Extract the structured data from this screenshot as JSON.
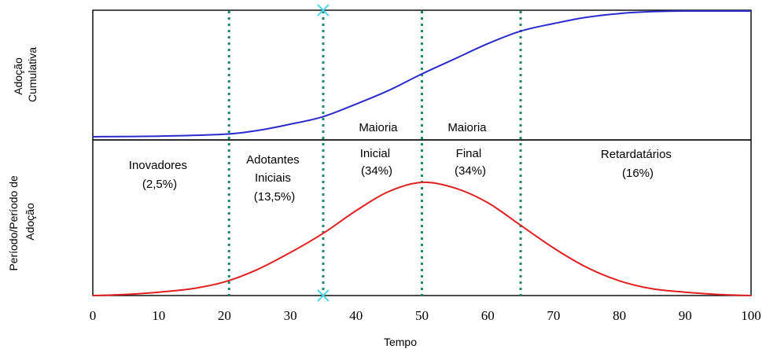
{
  "chart_data": {
    "type": "line",
    "x_label": "Tempo",
    "x_range": [
      0,
      100
    ],
    "x_ticks": [
      "0",
      "10",
      "20",
      "30",
      "40",
      "50",
      "60",
      "70",
      "80",
      "90",
      "100"
    ],
    "top_panel": {
      "y_label_lines": [
        "Adoção",
        "Cumulativa"
      ],
      "series": {
        "color": "#2b2bcc",
        "x": [
          0,
          10,
          20,
          25,
          30,
          35,
          40,
          45,
          50,
          55,
          60,
          65,
          70,
          75,
          80,
          85,
          90,
          100
        ],
        "y": [
          0.0,
          0.005,
          0.02,
          0.05,
          0.1,
          0.16,
          0.26,
          0.37,
          0.5,
          0.62,
          0.74,
          0.84,
          0.9,
          0.95,
          0.98,
          0.995,
          1.0,
          1.0
        ]
      }
    },
    "bottom_panel": {
      "y_label_lines": [
        "Período/Período de",
        "Adoção"
      ],
      "series": {
        "color": "#e02020",
        "x": [
          0,
          5,
          10,
          15,
          20,
          25,
          30,
          35,
          40,
          45,
          50,
          55,
          60,
          65,
          70,
          75,
          80,
          85,
          90,
          95,
          100
        ],
        "y": [
          0.0,
          0.01,
          0.03,
          0.06,
          0.12,
          0.23,
          0.38,
          0.55,
          0.75,
          0.92,
          1.0,
          0.95,
          0.82,
          0.62,
          0.42,
          0.25,
          0.13,
          0.06,
          0.03,
          0.01,
          0.0
        ]
      }
    },
    "dividers": {
      "x": [
        20.7,
        35,
        50,
        65
      ],
      "color": "#1a8a6a",
      "style": "dotted"
    },
    "markers": {
      "x": 35,
      "color": "#4fd6e6",
      "shape": "x"
    },
    "segments": [
      {
        "lines": [
          "Inovadores",
          "(2,5%)"
        ]
      },
      {
        "lines": [
          "Adotantes",
          "Iniciais",
          "(13,5%)"
        ]
      },
      {
        "lines": [
          "Maioria",
          "Inicial",
          "(34%)"
        ]
      },
      {
        "lines": [
          "Maioria",
          "Final",
          "(34%)"
        ]
      },
      {
        "lines": [
          "Retardatários",
          "(16%)"
        ]
      }
    ]
  }
}
